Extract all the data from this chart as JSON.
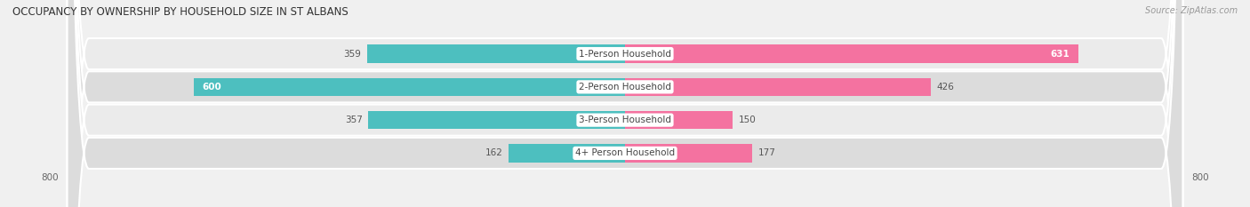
{
  "title": "OCCUPANCY BY OWNERSHIP BY HOUSEHOLD SIZE IN ST ALBANS",
  "source": "Source: ZipAtlas.com",
  "categories": [
    "1-Person Household",
    "2-Person Household",
    "3-Person Household",
    "4+ Person Household"
  ],
  "owner_values": [
    359,
    600,
    357,
    162
  ],
  "renter_values": [
    631,
    426,
    150,
    177
  ],
  "owner_color": "#4dbfbf",
  "renter_color": "#f472a0",
  "owner_color_light": "#7dd8d8",
  "renter_color_light": "#f9a8c9",
  "row_bg_light": "#ebebeb",
  "row_bg_dark": "#dcdcdc",
  "x_max": 800,
  "bar_height": 0.55,
  "label_fontsize": 7.5,
  "title_fontsize": 8.5,
  "source_fontsize": 7,
  "legend_fontsize": 7.5,
  "value_fontsize": 7.5,
  "tick_fontsize": 7.5
}
